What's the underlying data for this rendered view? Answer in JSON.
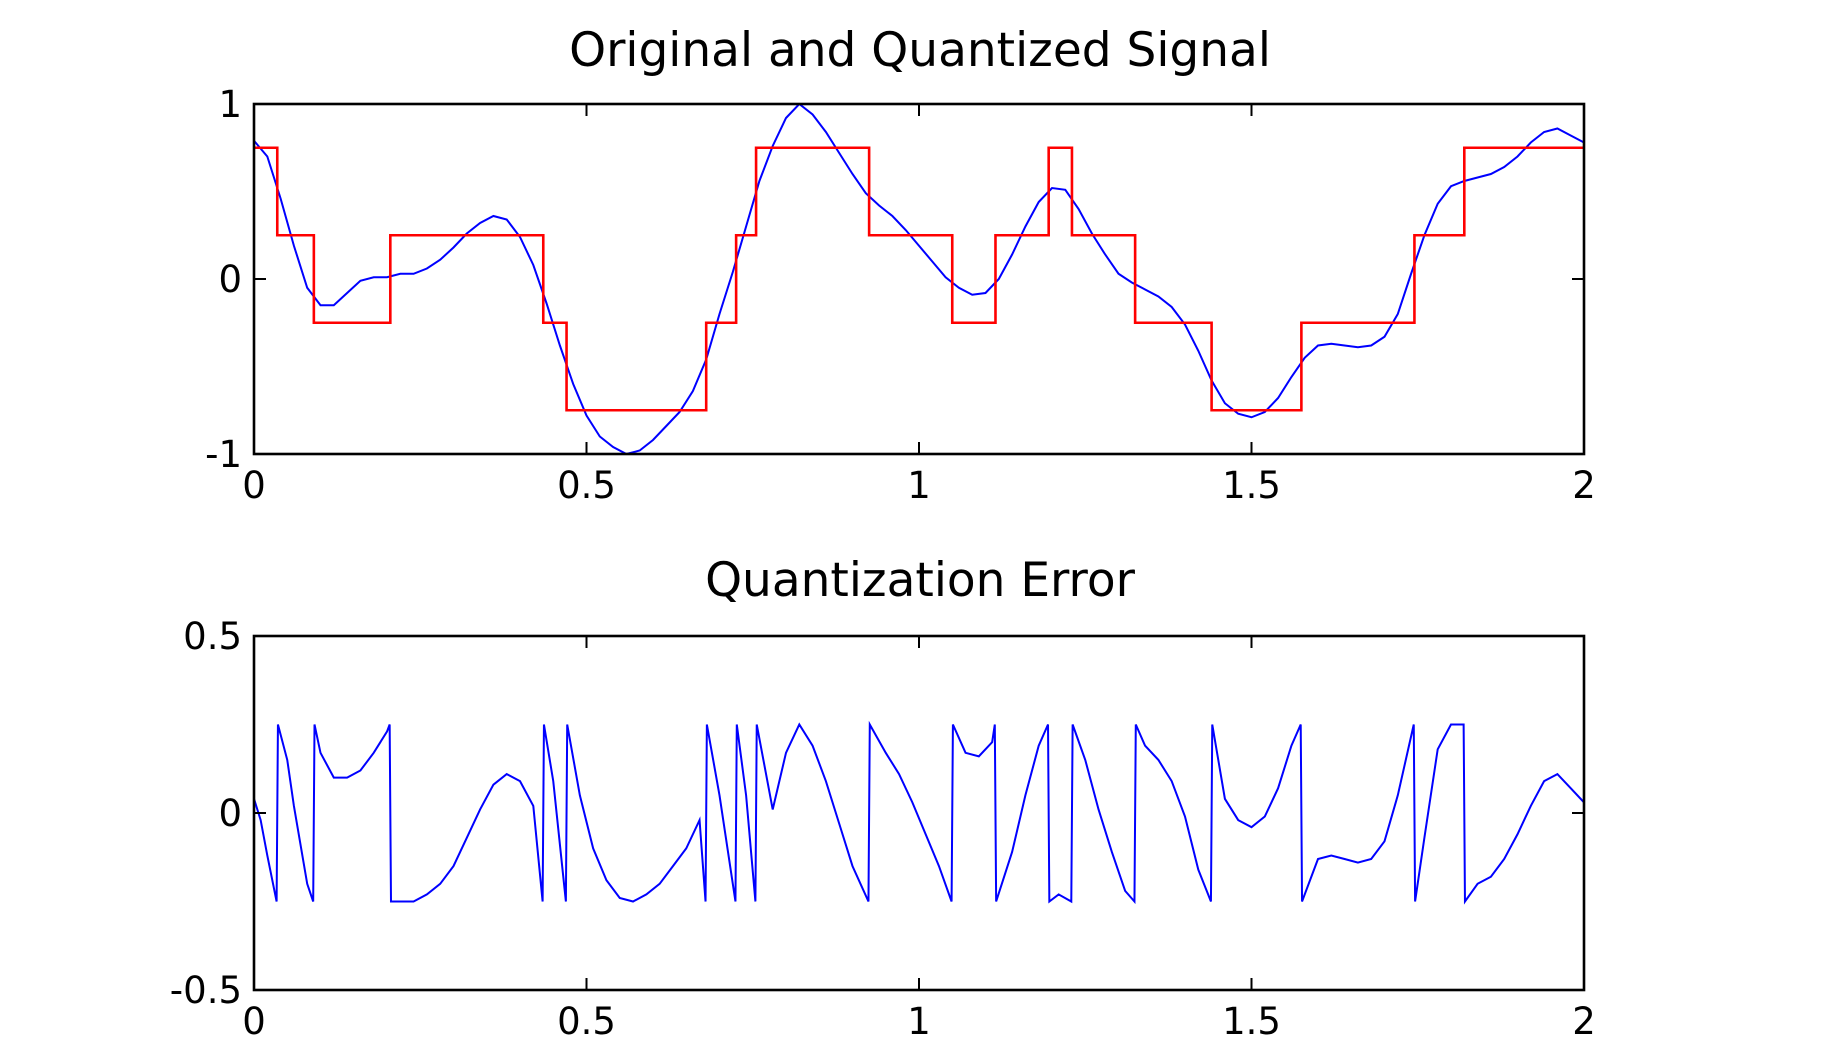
{
  "chart_data": [
    {
      "type": "line",
      "title": "Original and Quantized Signal",
      "xlabel": "",
      "ylabel": "",
      "xlim": [
        0,
        2
      ],
      "ylim": [
        -1,
        1
      ],
      "xticks": [
        0,
        0.5,
        1,
        1.5,
        2
      ],
      "xtick_labels": [
        "0",
        "0.5",
        "1",
        "1.5",
        "2"
      ],
      "yticks": [
        -1,
        0,
        1
      ],
      "ytick_labels": [
        "-1",
        "0",
        "1"
      ],
      "grid": false,
      "legend": false,
      "series": [
        {
          "color": "#0000ff",
          "step": false,
          "x": [
            0,
            0.02,
            0.04,
            0.06,
            0.08,
            0.1,
            0.12,
            0.14,
            0.16,
            0.18,
            0.2,
            0.22,
            0.24,
            0.26,
            0.28,
            0.3,
            0.32,
            0.34,
            0.36,
            0.38,
            0.4,
            0.42,
            0.44,
            0.46,
            0.48,
            0.5,
            0.52,
            0.54,
            0.56,
            0.58,
            0.6,
            0.62,
            0.64,
            0.66,
            0.68,
            0.7,
            0.72,
            0.74,
            0.76,
            0.78,
            0.8,
            0.82,
            0.84,
            0.86,
            0.88,
            0.9,
            0.92,
            0.94,
            0.96,
            0.98,
            1.0,
            1.02,
            1.04,
            1.06,
            1.08,
            1.1,
            1.12,
            1.14,
            1.16,
            1.18,
            1.2,
            1.22,
            1.24,
            1.26,
            1.28,
            1.3,
            1.32,
            1.34,
            1.36,
            1.38,
            1.4,
            1.42,
            1.44,
            1.46,
            1.48,
            1.5,
            1.52,
            1.54,
            1.56,
            1.58,
            1.6,
            1.62,
            1.64,
            1.66,
            1.68,
            1.7,
            1.72,
            1.74,
            1.76,
            1.78,
            1.8,
            1.82,
            1.84,
            1.86,
            1.88,
            1.9,
            1.92,
            1.94,
            1.96,
            1.98,
            2.0
          ],
          "y": [
            0.79,
            0.7,
            0.46,
            0.19,
            -0.05,
            -0.15,
            -0.15,
            -0.08,
            -0.01,
            0.01,
            0.01,
            0.03,
            0.03,
            0.06,
            0.11,
            0.18,
            0.26,
            0.32,
            0.36,
            0.34,
            0.24,
            0.08,
            -0.14,
            -0.38,
            -0.6,
            -0.78,
            -0.9,
            -0.96,
            -1.0,
            -0.98,
            -0.92,
            -0.84,
            -0.76,
            -0.64,
            -0.46,
            -0.2,
            0.04,
            0.3,
            0.56,
            0.76,
            0.92,
            1.0,
            0.94,
            0.84,
            0.72,
            0.6,
            0.49,
            0.42,
            0.36,
            0.28,
            0.19,
            0.1,
            0.01,
            -0.05,
            -0.09,
            -0.08,
            0.0,
            0.14,
            0.3,
            0.44,
            0.52,
            0.51,
            0.4,
            0.26,
            0.14,
            0.03,
            -0.02,
            -0.06,
            -0.1,
            -0.16,
            -0.26,
            -0.41,
            -0.58,
            -0.71,
            -0.77,
            -0.79,
            -0.76,
            -0.68,
            -0.56,
            -0.45,
            -0.38,
            -0.37,
            -0.38,
            -0.39,
            -0.38,
            -0.33,
            -0.2,
            0.03,
            0.25,
            0.43,
            0.53,
            0.56,
            0.58,
            0.6,
            0.64,
            0.7,
            0.78,
            0.84,
            0.86,
            0.82,
            0.78
          ]
        },
        {
          "color": "#ff0000",
          "step": true,
          "x": [
            0,
            0.035,
            0.035,
            0.09,
            0.09,
            0.205,
            0.205,
            0.435,
            0.435,
            0.47,
            0.47,
            0.68,
            0.68,
            0.725,
            0.725,
            0.755,
            0.755,
            0.925,
            0.925,
            1.05,
            1.05,
            1.115,
            1.115,
            1.195,
            1.195,
            1.23,
            1.23,
            1.325,
            1.325,
            1.44,
            1.44,
            1.575,
            1.575,
            1.745,
            1.745,
            1.82,
            1.82,
            2.0
          ],
          "y": [
            0.75,
            0.75,
            0.25,
            0.25,
            -0.25,
            -0.25,
            0.25,
            0.25,
            -0.25,
            -0.25,
            -0.75,
            -0.75,
            -0.25,
            -0.25,
            0.25,
            0.25,
            0.75,
            0.75,
            0.25,
            0.25,
            -0.25,
            -0.25,
            0.25,
            0.25,
            0.75,
            0.75,
            0.25,
            0.25,
            -0.25,
            -0.25,
            -0.75,
            -0.75,
            -0.25,
            -0.25,
            0.25,
            0.25,
            0.75,
            0.75
          ]
        }
      ]
    },
    {
      "type": "line",
      "title": "Quantization Error",
      "xlabel": "",
      "ylabel": "",
      "xlim": [
        0,
        2
      ],
      "ylim": [
        -0.5,
        0.5
      ],
      "xticks": [
        0,
        0.5,
        1,
        1.5,
        2
      ],
      "xtick_labels": [
        "0",
        "0.5",
        "1",
        "1.5",
        "2"
      ],
      "yticks": [
        -0.5,
        0,
        0.5
      ],
      "ytick_labels": [
        "-0.5",
        "0",
        "0.5"
      ],
      "grid": false,
      "legend": false,
      "series": [
        {
          "color": "#0000ff",
          "step": false,
          "x": [
            0.0,
            0.01,
            0.02,
            0.034,
            0.036,
            0.05,
            0.06,
            0.08,
            0.089,
            0.091,
            0.1,
            0.12,
            0.14,
            0.16,
            0.18,
            0.2,
            0.204,
            0.206,
            0.24,
            0.26,
            0.28,
            0.3,
            0.32,
            0.34,
            0.36,
            0.38,
            0.4,
            0.42,
            0.434,
            0.436,
            0.45,
            0.469,
            0.471,
            0.49,
            0.51,
            0.53,
            0.55,
            0.57,
            0.59,
            0.61,
            0.63,
            0.65,
            0.67,
            0.679,
            0.681,
            0.7,
            0.724,
            0.726,
            0.74,
            0.754,
            0.756,
            0.78,
            0.8,
            0.82,
            0.84,
            0.86,
            0.88,
            0.9,
            0.924,
            0.926,
            0.95,
            0.97,
            0.99,
            1.01,
            1.03,
            1.049,
            1.051,
            1.07,
            1.09,
            1.11,
            1.114,
            1.116,
            1.14,
            1.16,
            1.18,
            1.194,
            1.196,
            1.21,
            1.229,
            1.231,
            1.25,
            1.27,
            1.29,
            1.31,
            1.324,
            1.326,
            1.34,
            1.36,
            1.38,
            1.4,
            1.42,
            1.439,
            1.441,
            1.46,
            1.48,
            1.5,
            1.52,
            1.54,
            1.56,
            1.574,
            1.576,
            1.6,
            1.62,
            1.64,
            1.66,
            1.68,
            1.7,
            1.72,
            1.744,
            1.746,
            1.76,
            1.78,
            1.8,
            1.819,
            1.821,
            1.84,
            1.86,
            1.88,
            1.9,
            1.92,
            1.94,
            1.96,
            1.98,
            2.0
          ],
          "y": [
            0.04,
            -0.02,
            -0.12,
            -0.25,
            0.25,
            0.15,
            0.02,
            -0.2,
            -0.25,
            0.25,
            0.17,
            0.1,
            0.1,
            0.12,
            0.17,
            0.23,
            0.25,
            -0.25,
            -0.25,
            -0.23,
            -0.2,
            -0.15,
            -0.07,
            0.01,
            0.08,
            0.11,
            0.09,
            0.02,
            -0.25,
            0.25,
            0.09,
            -0.25,
            0.25,
            0.05,
            -0.1,
            -0.19,
            -0.24,
            -0.25,
            -0.23,
            -0.2,
            -0.15,
            -0.1,
            -0.02,
            -0.25,
            0.25,
            0.05,
            -0.25,
            0.25,
            0.05,
            -0.25,
            0.25,
            0.01,
            0.17,
            0.25,
            0.19,
            0.09,
            -0.03,
            -0.15,
            -0.25,
            0.25,
            0.17,
            0.11,
            0.03,
            -0.06,
            -0.15,
            -0.25,
            0.25,
            0.17,
            0.16,
            0.2,
            0.25,
            -0.25,
            -0.11,
            0.05,
            0.19,
            0.25,
            -0.25,
            -0.23,
            -0.25,
            0.25,
            0.15,
            0.01,
            -0.11,
            -0.22,
            -0.25,
            0.25,
            0.19,
            0.15,
            0.09,
            -0.01,
            -0.16,
            -0.25,
            0.25,
            0.04,
            -0.02,
            -0.04,
            -0.01,
            0.07,
            0.19,
            0.25,
            -0.25,
            -0.13,
            -0.12,
            -0.13,
            -0.14,
            -0.13,
            -0.08,
            0.05,
            0.25,
            -0.25,
            -0.07,
            0.18,
            0.25,
            0.25,
            -0.25,
            -0.2,
            -0.18,
            -0.13,
            -0.06,
            0.02,
            0.09,
            0.11,
            0.07,
            0.03
          ]
        }
      ]
    }
  ]
}
